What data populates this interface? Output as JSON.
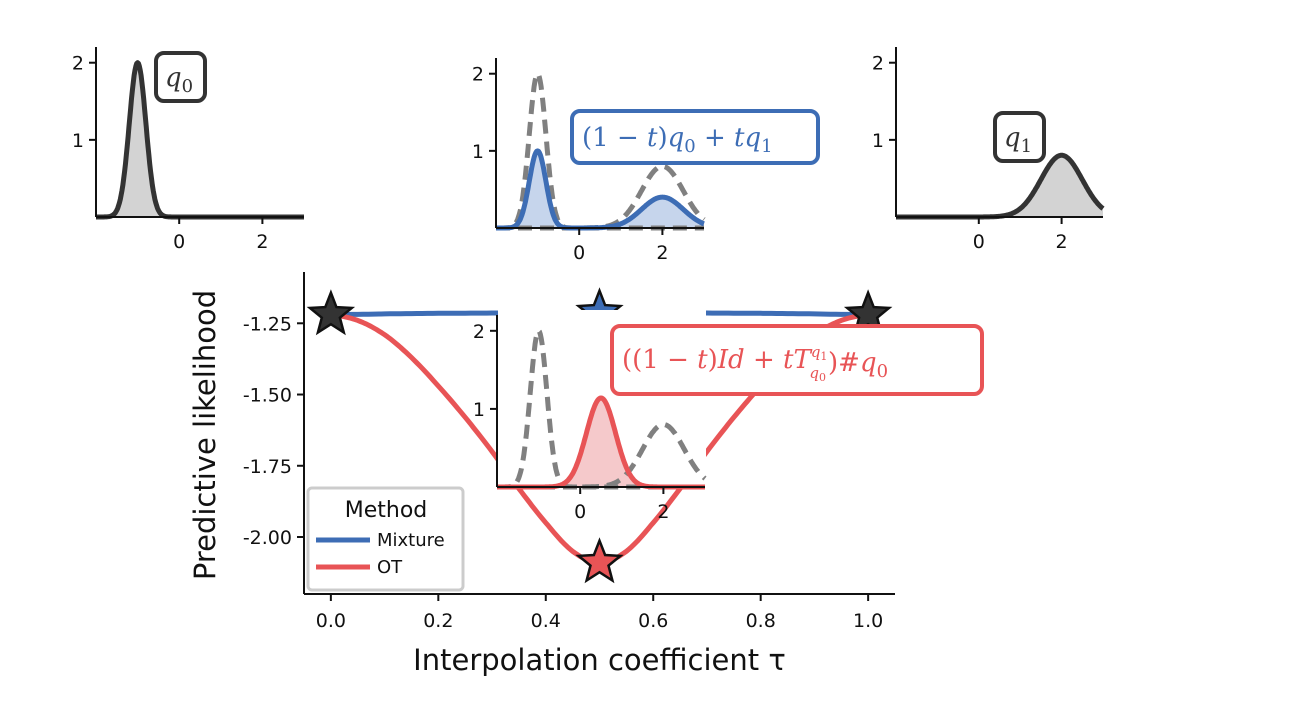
{
  "colors": {
    "mixture": "#3d6db5",
    "ot": "#e85456",
    "endpoint": "#333333",
    "dashed": "#808080",
    "fill_gray": "#d3d3d3",
    "fill_blue": "#c6d5ec",
    "fill_red": "#f5c9cb"
  },
  "chart_data": [
    {
      "id": "main",
      "type": "line",
      "xlabel": "Interpolation coefficient τ",
      "ylabel": "Predictive likelihood",
      "xlim": [
        -0.05,
        1.05
      ],
      "ylim": [
        -2.2,
        -1.07
      ],
      "xticks": [
        {
          "value": 0.0,
          "label": "0.0"
        },
        {
          "value": 0.2,
          "label": "0.2"
        },
        {
          "value": 0.4,
          "label": "0.4"
        },
        {
          "value": 0.6,
          "label": "0.6"
        },
        {
          "value": 0.8,
          "label": "0.8"
        },
        {
          "value": 1.0,
          "label": "1.0"
        }
      ],
      "yticks": [
        {
          "value": -1.25,
          "label": "-1.25"
        },
        {
          "value": -1.5,
          "label": "-1.50"
        },
        {
          "value": -1.75,
          "label": "-1.75"
        },
        {
          "value": -2.0,
          "label": "-2.00"
        }
      ],
      "series": [
        {
          "name": "Mixture",
          "x": [
            0.0,
            0.1,
            0.2,
            0.3,
            0.4,
            0.5,
            0.6,
            0.7,
            0.8,
            0.9,
            1.0
          ],
          "y": [
            -1.22,
            -1.217,
            -1.215,
            -1.214,
            -1.213,
            -1.213,
            -1.213,
            -1.214,
            -1.215,
            -1.217,
            -1.22
          ]
        },
        {
          "name": "OT",
          "x": [
            0.0,
            0.05,
            0.1,
            0.15,
            0.2,
            0.25,
            0.3,
            0.35,
            0.4,
            0.45,
            0.5,
            0.55,
            0.6,
            0.65,
            0.7,
            0.75,
            0.8,
            0.85,
            0.9,
            0.95,
            1.0
          ],
          "y": [
            -1.22,
            -1.24,
            -1.29,
            -1.37,
            -1.47,
            -1.58,
            -1.7,
            -1.83,
            -1.95,
            -2.05,
            -2.09,
            -2.05,
            -1.95,
            -1.83,
            -1.7,
            -1.58,
            -1.47,
            -1.37,
            -1.29,
            -1.24,
            -1.22
          ]
        }
      ],
      "markers": [
        {
          "x": 0.0,
          "y": -1.22,
          "series": "endpoint"
        },
        {
          "x": 1.0,
          "y": -1.22,
          "series": "endpoint"
        },
        {
          "x": 0.5,
          "y": -1.213,
          "series": "Mixture"
        },
        {
          "x": 0.5,
          "y": -2.09,
          "series": "OT"
        }
      ],
      "legend": {
        "title": "Method",
        "position": "lower-left",
        "entries": [
          "Mixture",
          "OT"
        ]
      }
    },
    {
      "id": "q0",
      "type": "area",
      "label": "q_0",
      "xlim": [
        -2.0,
        3.0
      ],
      "ylim": [
        0,
        2.1
      ],
      "xticks": [
        {
          "value": 0,
          "label": "0"
        },
        {
          "value": 2,
          "label": "2"
        }
      ],
      "yticks": [
        {
          "value": 1,
          "label": "1"
        },
        {
          "value": 2,
          "label": "2"
        }
      ],
      "curves": [
        {
          "kind": "gaussian",
          "mean": -1.0,
          "peak": 2.0,
          "sd": 0.2,
          "style": "solid-filled"
        }
      ]
    },
    {
      "id": "mixture_inset",
      "type": "area",
      "label": "(1 − t)q_0 + tq_1",
      "xlim": [
        -2.0,
        3.0
      ],
      "ylim": [
        0,
        2.1
      ],
      "xticks": [
        {
          "value": 0,
          "label": "0"
        },
        {
          "value": 2,
          "label": "2"
        }
      ],
      "yticks": [
        {
          "value": 1,
          "label": "1"
        },
        {
          "value": 2,
          "label": "2"
        }
      ],
      "curves": [
        {
          "kind": "gaussian",
          "mean": -1.0,
          "peak": 2.0,
          "sd": 0.2,
          "style": "dashed"
        },
        {
          "kind": "gaussian",
          "mean": 2.0,
          "peak": 0.8,
          "sd": 0.5,
          "style": "dashed"
        },
        {
          "kind": "mixture",
          "components": [
            {
              "mean": -1.0,
              "peak": 1.0,
              "sd": 0.2
            },
            {
              "mean": 2.0,
              "peak": 0.4,
              "sd": 0.5
            }
          ],
          "style": "solid-filled"
        }
      ]
    },
    {
      "id": "q1",
      "type": "area",
      "label": "q_1",
      "xlim": [
        -2.0,
        3.0
      ],
      "ylim": [
        0,
        2.1
      ],
      "xticks": [
        {
          "value": 0,
          "label": "0"
        },
        {
          "value": 2,
          "label": "2"
        }
      ],
      "yticks": [
        {
          "value": 1,
          "label": "1"
        },
        {
          "value": 2,
          "label": "2"
        }
      ],
      "curves": [
        {
          "kind": "gaussian",
          "mean": 2.0,
          "peak": 0.8,
          "sd": 0.5,
          "style": "solid-filled"
        }
      ]
    },
    {
      "id": "ot_inset",
      "type": "area",
      "label": "((1 − t)Id + tT^{q_1}_{q_0})#q_0",
      "xlim": [
        -2.0,
        3.0
      ],
      "ylim": [
        0,
        2.1
      ],
      "xticks": [
        {
          "value": 0,
          "label": "0"
        },
        {
          "value": 2,
          "label": "2"
        }
      ],
      "yticks": [
        {
          "value": 1,
          "label": "1"
        },
        {
          "value": 2,
          "label": "2"
        }
      ],
      "curves": [
        {
          "kind": "gaussian",
          "mean": -1.0,
          "peak": 2.0,
          "sd": 0.2,
          "style": "dashed"
        },
        {
          "kind": "gaussian",
          "mean": 2.0,
          "peak": 0.8,
          "sd": 0.5,
          "style": "dashed"
        },
        {
          "kind": "gaussian",
          "mean": 0.5,
          "peak": 1.14,
          "sd": 0.35,
          "style": "solid-filled"
        }
      ]
    }
  ]
}
